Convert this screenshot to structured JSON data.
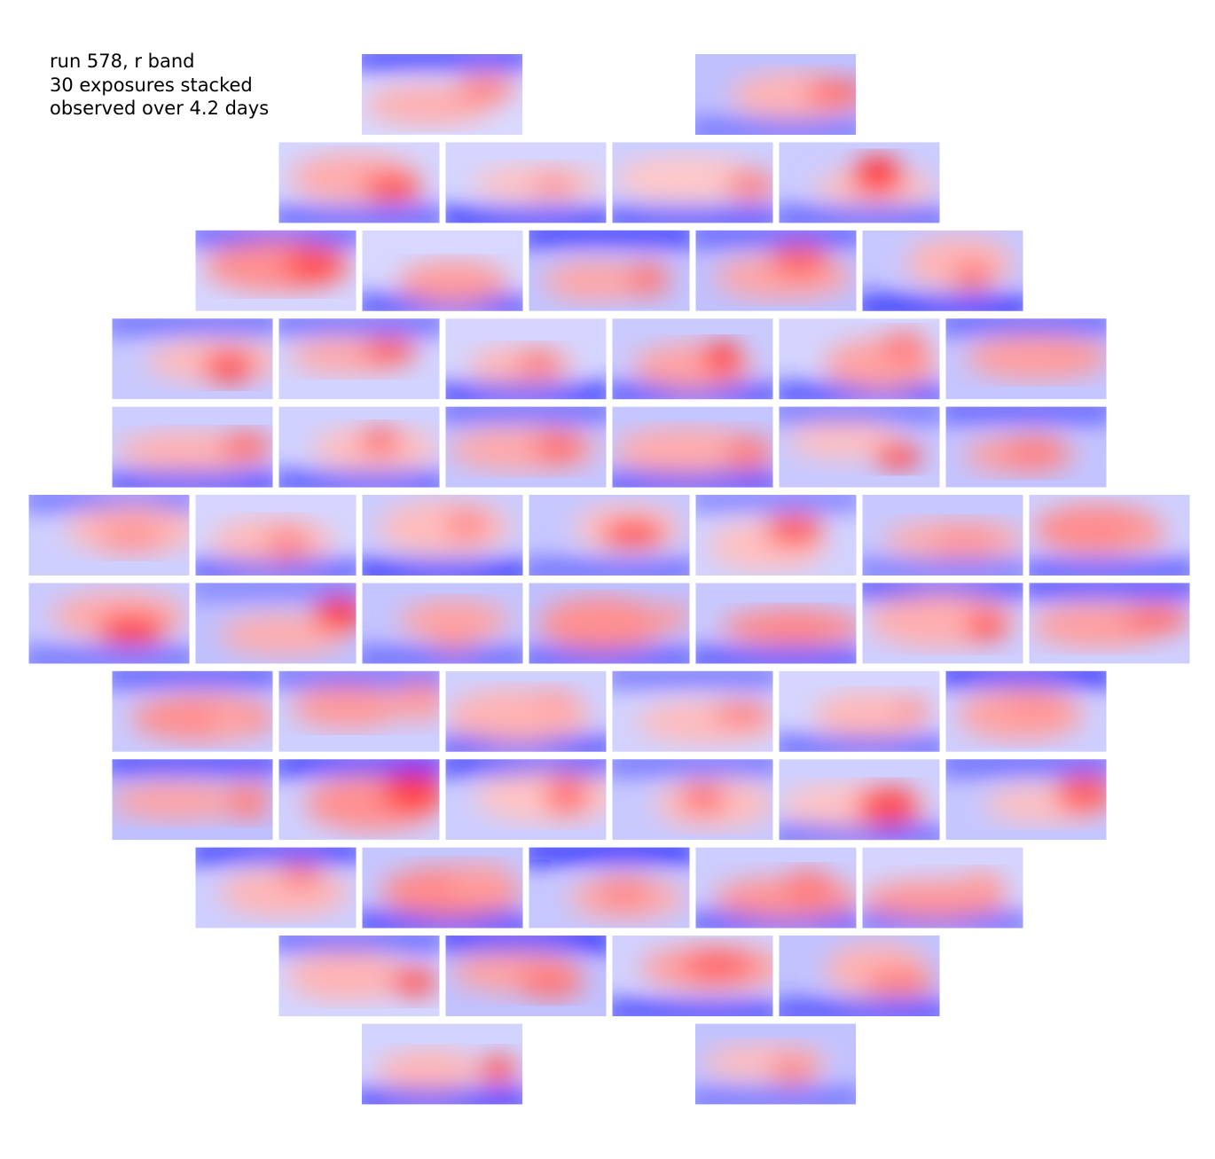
{
  "annotation": {
    "line1": "run 578, r band",
    "line2": "30 exposures stacked",
    "line3": "observed over 4.2 days"
  },
  "chart_data": {
    "type": "heatmap",
    "description_of_layout": "camera focal plane mosaic of CCD residual maps",
    "colormap": "bwr",
    "colors": {
      "low": "#0000ff",
      "mid": "#ffffff",
      "high": "#ff0000"
    },
    "rows": [
      {
        "ccds": 2
      },
      {
        "ccds": 4
      },
      {
        "ccds": 5
      },
      {
        "ccds": 6
      },
      {
        "ccds": 6
      },
      {
        "ccds": 7
      },
      {
        "ccds": 7
      },
      {
        "ccds": 6
      },
      {
        "ccds": 6
      },
      {
        "ccds": 5
      },
      {
        "ccds": 4
      },
      {
        "ccds": 2
      }
    ],
    "ccd_count": 60
  }
}
